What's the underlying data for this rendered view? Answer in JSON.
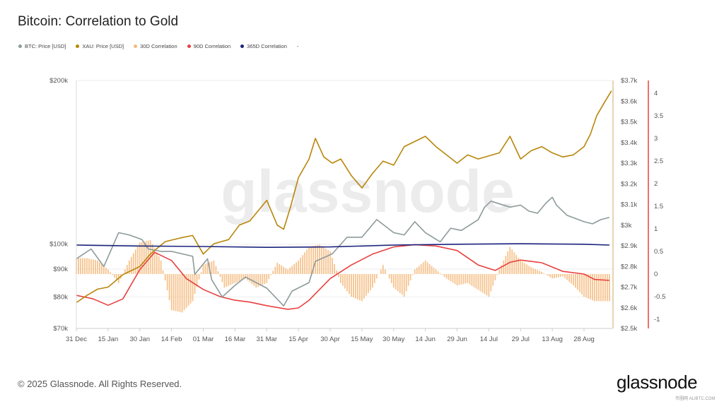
{
  "header": {
    "title": "Bitcoin: Correlation to Gold"
  },
  "legend": [
    {
      "label": "BTC: Price [USD]",
      "color": "#8e9a9a"
    },
    {
      "label": "XAU: Price [USD]",
      "color": "#b8860b"
    },
    {
      "label": "30D Correlation",
      "color": "#f5b97a"
    },
    {
      "label": "90D Correlation",
      "color": "#e8403f"
    },
    {
      "label": "365D Correlation",
      "color": "#1a237e"
    },
    {
      "label": "-",
      "color": ""
    }
  ],
  "footer": {
    "copyright": "© 2025 Glassnode. All Rights Reserved.",
    "logo": "glassnode",
    "watermark": "glassnode",
    "overlay_watermark": "币圈网 ALIBTC.COM"
  },
  "chart_data": {
    "type": "line",
    "title": "Bitcoin: Correlation to Gold",
    "x_unit": "days since 31 Dec 2024",
    "x_ticks": [
      {
        "day": 0,
        "label": "31 Dec"
      },
      {
        "day": 15,
        "label": "15 Jan"
      },
      {
        "day": 30,
        "label": "30 Jan"
      },
      {
        "day": 45,
        "label": "14 Feb"
      },
      {
        "day": 60,
        "label": "01 Mar"
      },
      {
        "day": 75,
        "label": "16 Mar"
      },
      {
        "day": 90,
        "label": "31 Mar"
      },
      {
        "day": 105,
        "label": "15 Apr"
      },
      {
        "day": 120,
        "label": "30 Apr"
      },
      {
        "day": 135,
        "label": "15 May"
      },
      {
        "day": 150,
        "label": "30 May"
      },
      {
        "day": 165,
        "label": "14 Jun"
      },
      {
        "day": 180,
        "label": "29 Jun"
      },
      {
        "day": 195,
        "label": "14 Jul"
      },
      {
        "day": 210,
        "label": "29 Jul"
      },
      {
        "day": 225,
        "label": "13 Aug"
      },
      {
        "day": 240,
        "label": "28 Aug"
      }
    ],
    "xlim": [
      0,
      253
    ],
    "axes": {
      "btc": {
        "scale": "log",
        "ylim": [
          70000,
          200000
        ],
        "ticks": [
          {
            "v": 200000,
            "label": "$200k"
          },
          {
            "v": 100000,
            "label": "$100k"
          },
          {
            "v": 90000,
            "label": "$90k"
          },
          {
            "v": 80000,
            "label": "$80k"
          },
          {
            "v": 70000,
            "label": "$70k"
          }
        ]
      },
      "xau": {
        "scale": "linear",
        "ylim": [
          2500,
          3700
        ],
        "ticks": [
          {
            "v": 3700,
            "label": "$3.7k"
          },
          {
            "v": 3600,
            "label": "$3.6k"
          },
          {
            "v": 3500,
            "label": "$3.5k"
          },
          {
            "v": 3400,
            "label": "$3.4k"
          },
          {
            "v": 3300,
            "label": "$3.3k"
          },
          {
            "v": 3200,
            "label": "$3.2k"
          },
          {
            "v": 3100,
            "label": "$3.1k"
          },
          {
            "v": 3000,
            "label": "$3k"
          },
          {
            "v": 2900,
            "label": "$2.9k"
          },
          {
            "v": 2800,
            "label": "$2.8k"
          },
          {
            "v": 2700,
            "label": "$2.7k"
          },
          {
            "v": 2600,
            "label": "$2.6k"
          },
          {
            "v": 2500,
            "label": "$2.5k"
          }
        ]
      },
      "corr": {
        "scale": "linear",
        "ylim": [
          -1.2,
          4.3
        ],
        "ticks": [
          {
            "v": 4,
            "label": "4"
          },
          {
            "v": 3.5,
            "label": "3.5"
          },
          {
            "v": 3,
            "label": "3"
          },
          {
            "v": 2.5,
            "label": "2.5"
          },
          {
            "v": 2,
            "label": "2"
          },
          {
            "v": 1.5,
            "label": "1.5"
          },
          {
            "v": 1,
            "label": "1"
          },
          {
            "v": 0.5,
            "label": "0.5"
          },
          {
            "v": 0,
            "label": "0"
          },
          {
            "v": -0.5,
            "label": "-0.5"
          },
          {
            "v": -1,
            "label": "-1"
          }
        ]
      }
    },
    "series": [
      {
        "name": "BTC: Price [USD]",
        "axis": "btc",
        "color": "#8e9a9a",
        "kind": "line",
        "points": [
          [
            0,
            94000
          ],
          [
            7,
            98000
          ],
          [
            13,
            91000
          ],
          [
            20,
            105000
          ],
          [
            25,
            104000
          ],
          [
            31,
            102000
          ],
          [
            34,
            98000
          ],
          [
            40,
            97000
          ],
          [
            45,
            97000
          ],
          [
            55,
            95000
          ],
          [
            56,
            88000
          ],
          [
            62,
            94000
          ],
          [
            64,
            86000
          ],
          [
            69,
            80000
          ],
          [
            75,
            84000
          ],
          [
            80,
            87000
          ],
          [
            90,
            83000
          ],
          [
            98,
            77000
          ],
          [
            102,
            82000
          ],
          [
            110,
            85000
          ],
          [
            113,
            93000
          ],
          [
            121,
            96000
          ],
          [
            128,
            103000
          ],
          [
            135,
            103000
          ],
          [
            142,
            111000
          ],
          [
            150,
            105000
          ],
          [
            155,
            104000
          ],
          [
            160,
            110000
          ],
          [
            165,
            105000
          ],
          [
            172,
            101000
          ],
          [
            177,
            107000
          ],
          [
            182,
            106000
          ],
          [
            190,
            111000
          ],
          [
            193,
            117000
          ],
          [
            196,
            120000
          ],
          [
            205,
            117000
          ],
          [
            210,
            118000
          ],
          [
            214,
            115000
          ],
          [
            218,
            114000
          ],
          [
            222,
            119000
          ],
          [
            225,
            122000
          ],
          [
            227,
            118000
          ],
          [
            232,
            113000
          ],
          [
            240,
            110000
          ],
          [
            244,
            109000
          ],
          [
            248,
            111000
          ],
          [
            252,
            112000
          ]
        ]
      },
      {
        "name": "XAU: Price [USD]",
        "axis": "xau",
        "color": "#b8860b",
        "kind": "line",
        "points": [
          [
            0,
            2625
          ],
          [
            5,
            2660
          ],
          [
            10,
            2690
          ],
          [
            15,
            2700
          ],
          [
            22,
            2760
          ],
          [
            30,
            2800
          ],
          [
            35,
            2860
          ],
          [
            42,
            2920
          ],
          [
            50,
            2940
          ],
          [
            55,
            2950
          ],
          [
            60,
            2860
          ],
          [
            65,
            2910
          ],
          [
            72,
            2930
          ],
          [
            77,
            3000
          ],
          [
            82,
            3020
          ],
          [
            90,
            3120
          ],
          [
            95,
            3000
          ],
          [
            98,
            2980
          ],
          [
            101,
            3080
          ],
          [
            105,
            3230
          ],
          [
            110,
            3320
          ],
          [
            113,
            3420
          ],
          [
            117,
            3330
          ],
          [
            121,
            3300
          ],
          [
            125,
            3320
          ],
          [
            130,
            3240
          ],
          [
            135,
            3180
          ],
          [
            140,
            3250
          ],
          [
            145,
            3310
          ],
          [
            150,
            3290
          ],
          [
            155,
            3380
          ],
          [
            165,
            3430
          ],
          [
            170,
            3380
          ],
          [
            180,
            3300
          ],
          [
            185,
            3340
          ],
          [
            190,
            3320
          ],
          [
            200,
            3350
          ],
          [
            205,
            3430
          ],
          [
            210,
            3320
          ],
          [
            215,
            3360
          ],
          [
            220,
            3380
          ],
          [
            225,
            3350
          ],
          [
            230,
            3330
          ],
          [
            235,
            3340
          ],
          [
            240,
            3380
          ],
          [
            243,
            3440
          ],
          [
            246,
            3530
          ],
          [
            250,
            3600
          ],
          [
            253,
            3650
          ]
        ]
      },
      {
        "name": "30D Correlation",
        "axis": "corr",
        "color": "#f5b97a",
        "kind": "bar",
        "points": [
          [
            0,
            0.35
          ],
          [
            5,
            0.35
          ],
          [
            10,
            0.3
          ],
          [
            15,
            0.1
          ],
          [
            20,
            -0.2
          ],
          [
            25,
            0.3
          ],
          [
            30,
            0.7
          ],
          [
            35,
            0.75
          ],
          [
            40,
            0.3
          ],
          [
            45,
            -0.8
          ],
          [
            50,
            -0.85
          ],
          [
            55,
            -0.6
          ],
          [
            60,
            0.2
          ],
          [
            65,
            0.3
          ],
          [
            70,
            -0.3
          ],
          [
            75,
            -0.2
          ],
          [
            80,
            -0.1
          ],
          [
            85,
            -0.3
          ],
          [
            90,
            -0.2
          ],
          [
            95,
            0.25
          ],
          [
            100,
            0.1
          ],
          [
            105,
            0.3
          ],
          [
            110,
            0.6
          ],
          [
            115,
            0.65
          ],
          [
            120,
            0.5
          ],
          [
            125,
            -0.2
          ],
          [
            130,
            -0.5
          ],
          [
            135,
            -0.6
          ],
          [
            140,
            -0.3
          ],
          [
            145,
            0.2
          ],
          [
            150,
            -0.3
          ],
          [
            155,
            -0.5
          ],
          [
            160,
            0.1
          ],
          [
            165,
            0.3
          ],
          [
            170,
            0.1
          ],
          [
            175,
            -0.1
          ],
          [
            180,
            -0.25
          ],
          [
            185,
            -0.2
          ],
          [
            190,
            -0.35
          ],
          [
            195,
            -0.5
          ],
          [
            200,
            0.1
          ],
          [
            205,
            0.6
          ],
          [
            210,
            0.3
          ],
          [
            215,
            0.15
          ],
          [
            220,
            0.05
          ],
          [
            225,
            -0.1
          ],
          [
            230,
            -0.05
          ],
          [
            235,
            -0.25
          ],
          [
            240,
            -0.5
          ],
          [
            245,
            -0.6
          ],
          [
            252,
            -0.6
          ]
        ]
      },
      {
        "name": "90D Correlation",
        "axis": "corr",
        "color": "#e8403f",
        "kind": "line",
        "points": [
          [
            0,
            -0.47
          ],
          [
            8,
            -0.55
          ],
          [
            15,
            -0.69
          ],
          [
            22,
            -0.55
          ],
          [
            30,
            0.1
          ],
          [
            37,
            0.48
          ],
          [
            45,
            0.3
          ],
          [
            52,
            -0.1
          ],
          [
            60,
            -0.34
          ],
          [
            68,
            -0.5
          ],
          [
            75,
            -0.58
          ],
          [
            82,
            -0.62
          ],
          [
            90,
            -0.7
          ],
          [
            100,
            -0.78
          ],
          [
            105,
            -0.75
          ],
          [
            110,
            -0.58
          ],
          [
            120,
            -0.1
          ],
          [
            130,
            0.2
          ],
          [
            140,
            0.44
          ],
          [
            150,
            0.6
          ],
          [
            160,
            0.65
          ],
          [
            170,
            0.62
          ],
          [
            180,
            0.52
          ],
          [
            190,
            0.2
          ],
          [
            198,
            0.08
          ],
          [
            205,
            0.26
          ],
          [
            210,
            0.31
          ],
          [
            220,
            0.25
          ],
          [
            230,
            0.06
          ],
          [
            240,
            0.0
          ],
          [
            245,
            -0.12
          ],
          [
            252,
            -0.14
          ]
        ]
      },
      {
        "name": "365D Correlation",
        "axis": "corr",
        "color": "#1a237e",
        "kind": "line",
        "points": [
          [
            0,
            0.64
          ],
          [
            30,
            0.62
          ],
          [
            60,
            0.61
          ],
          [
            90,
            0.59
          ],
          [
            120,
            0.6
          ],
          [
            150,
            0.64
          ],
          [
            180,
            0.66
          ],
          [
            210,
            0.67
          ],
          [
            240,
            0.66
          ],
          [
            252,
            0.64
          ]
        ]
      }
    ]
  }
}
